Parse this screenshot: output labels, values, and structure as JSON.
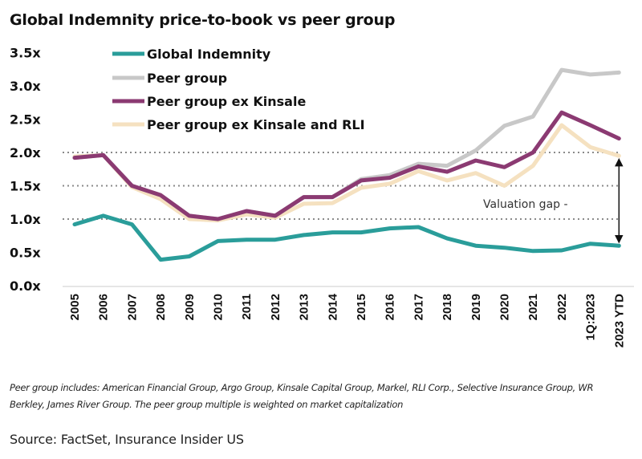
{
  "chart_data": {
    "type": "line",
    "title": "Global Indemnity price-to-book vs peer group",
    "xlabel": "",
    "ylabel": "",
    "ylim": [
      0,
      3.5
    ],
    "yticks": [
      "0.0x",
      "0.5x",
      "1.0x",
      "1.5x",
      "2.0x",
      "2.5x",
      "3.0x",
      "3.5x"
    ],
    "ytick_values": [
      0,
      0.5,
      1.0,
      1.5,
      2.0,
      2.5,
      3.0,
      3.5
    ],
    "gridlines": [
      1.0,
      1.5,
      2.0
    ],
    "grid": "dotted horizontal at 1.0x, 1.5x, 2.0x",
    "legend_position": "top-left",
    "categories": [
      "2005",
      "2006",
      "2007",
      "2008",
      "2009",
      "2010",
      "2011",
      "2012",
      "2013",
      "2014",
      "2015",
      "2016",
      "2017",
      "2018",
      "2019",
      "2020",
      "2021",
      "2022",
      "1Q:2023",
      "2023 YTD"
    ],
    "series": [
      {
        "name": "Peer group ex Kinsale and RLI",
        "color": "#f5e1c0",
        "values": [
          1.94,
          1.96,
          1.48,
          1.3,
          1.0,
          0.98,
          1.07,
          1.02,
          1.23,
          1.24,
          1.47,
          1.53,
          1.72,
          1.58,
          1.69,
          1.5,
          1.8,
          2.41,
          2.08,
          1.95
        ]
      },
      {
        "name": "Peer group",
        "color": "#c8c8c8",
        "values": [
          1.92,
          1.96,
          1.5,
          1.36,
          1.05,
          1.0,
          1.12,
          1.05,
          1.33,
          1.33,
          1.6,
          1.66,
          1.83,
          1.8,
          2.03,
          2.4,
          2.54,
          3.24,
          3.17,
          3.2
        ]
      },
      {
        "name": "Peer group ex Kinsale",
        "color": "#8b3a72",
        "values": [
          1.92,
          1.96,
          1.5,
          1.36,
          1.05,
          1.0,
          1.12,
          1.05,
          1.33,
          1.33,
          1.58,
          1.62,
          1.79,
          1.71,
          1.88,
          1.78,
          2.0,
          2.6,
          2.41,
          2.21
        ]
      },
      {
        "name": "Global Indemnity",
        "color": "#2a9d9a",
        "values": [
          0.92,
          1.05,
          0.92,
          0.39,
          0.44,
          0.67,
          0.69,
          0.69,
          0.76,
          0.8,
          0.8,
          0.86,
          0.88,
          0.71,
          0.6,
          0.57,
          0.52,
          0.53,
          0.63,
          0.6
        ]
      }
    ],
    "legend": [
      {
        "name": "Global Indemnity",
        "color": "#2a9d9a"
      },
      {
        "name": "Peer group",
        "color": "#c8c8c8"
      },
      {
        "name": "Peer group ex Kinsale",
        "color": "#8b3a72"
      },
      {
        "name": "Peer group ex Kinsale and RLI",
        "color": "#f5e1c0"
      }
    ],
    "annotations": [
      {
        "text": "Valuation gap -",
        "arrow_from": 1.95,
        "arrow_to": 0.6,
        "category": "2023 YTD"
      }
    ]
  },
  "footnote": "Peer group includes: American Financial Group, Argo Group, Kinsale Capital Group, Markel, RLI Corp., Selective Insurance Group, WR Berkley, James River Group. The peer group multiple is weighted on market capitalization",
  "source": "Source: FactSet, Insurance Insider US"
}
